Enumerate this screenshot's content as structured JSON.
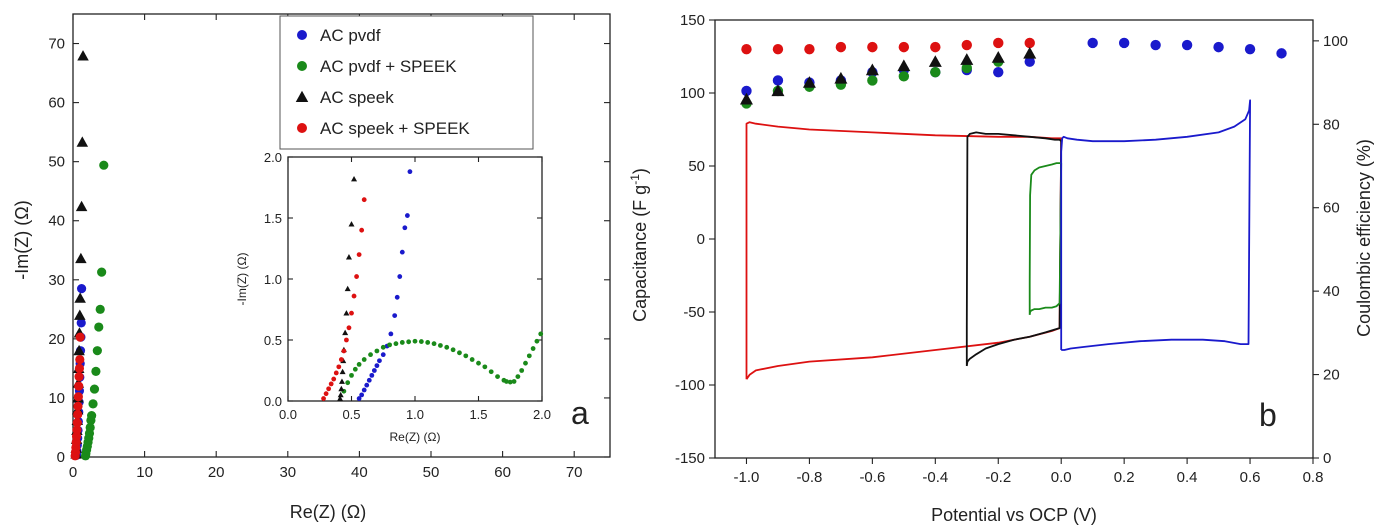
{
  "chart_data": [
    {
      "id": "panel-a",
      "type": "scatter",
      "panel_label": "a",
      "xlabel": "Re(Z) (Ω)",
      "ylabel": "-Im(Z) (Ω)",
      "xlim": [
        0,
        75
      ],
      "ylim": [
        0,
        75
      ],
      "xticks": [
        0,
        10,
        20,
        30,
        40,
        50,
        60,
        70
      ],
      "yticks": [
        0,
        10,
        20,
        30,
        40,
        50,
        60,
        70
      ],
      "legend_position": "top-right",
      "series": [
        {
          "name": "AC pvdf",
          "color": "#1a1acc",
          "marker": "circle",
          "x": [
            0.5,
            0.55,
            0.6,
            0.65,
            0.7,
            0.75,
            0.8,
            0.85,
            0.9,
            0.95,
            1.0,
            1.05,
            1.1,
            1.15,
            1.2
          ],
          "y": [
            0.3,
            1.0,
            2.0,
            3.2,
            4.5,
            6.0,
            7.6,
            9.3,
            11.2,
            13.5,
            15.8,
            18.0,
            20.3,
            22.7,
            28.5
          ]
        },
        {
          "name": "AC pvdf + SPEEK",
          "color": "#1a8a1a",
          "marker": "circle",
          "x": [
            1.75,
            1.8,
            1.9,
            2.0,
            2.1,
            2.2,
            2.3,
            2.4,
            2.5,
            2.6,
            2.8,
            3.0,
            3.2,
            3.4,
            3.6,
            3.8,
            4.0,
            4.3
          ],
          "y": [
            0.2,
            0.6,
            1.2,
            1.8,
            2.5,
            3.2,
            4.0,
            5.0,
            6.2,
            7.0,
            9.0,
            11.5,
            14.5,
            18.0,
            22.0,
            25.0,
            31.3,
            49.4
          ]
        },
        {
          "name": "AC speek",
          "color": "#111111",
          "marker": "triangle",
          "x": [
            0.43,
            0.45,
            0.5,
            0.55,
            0.6,
            0.65,
            0.7,
            0.75,
            0.8,
            0.85,
            0.9,
            0.95,
            1.0,
            1.1,
            1.2,
            1.3,
            1.4
          ],
          "y": [
            0.5,
            1.5,
            3.0,
            4.5,
            6.2,
            8.0,
            10.0,
            12.5,
            15.0,
            18.0,
            21.0,
            24.0,
            26.9,
            33.6,
            42.4,
            53.3,
            67.9
          ]
        },
        {
          "name": "AC speek + SPEEK",
          "color": "#dd1111",
          "marker": "circle",
          "x": [
            0.3,
            0.35,
            0.4,
            0.45,
            0.5,
            0.55,
            0.6,
            0.65,
            0.7,
            0.75,
            0.8,
            0.85,
            0.9,
            0.95,
            1.0
          ],
          "y": [
            0.2,
            0.8,
            1.6,
            2.5,
            3.5,
            4.6,
            5.8,
            7.2,
            8.6,
            10.2,
            12.0,
            13.6,
            15.0,
            16.5,
            20.3
          ]
        }
      ],
      "inset": {
        "xlabel": "Re(Z) (Ω)",
        "ylabel": "-Im(Z) (Ω)",
        "xlim": [
          0,
          2.0
        ],
        "ylim": [
          0,
          2.0
        ],
        "xticks": [
          0.0,
          0.5,
          1.0,
          1.5,
          2.0
        ],
        "yticks": [
          0.0,
          0.5,
          1.0,
          1.5,
          2.0
        ],
        "series": [
          {
            "name": "AC pvdf",
            "color": "#1a1acc",
            "marker": "circle",
            "x": [
              0.56,
              0.58,
              0.6,
              0.62,
              0.64,
              0.66,
              0.68,
              0.7,
              0.72,
              0.75,
              0.78,
              0.81,
              0.84,
              0.86,
              0.88,
              0.9,
              0.92,
              0.94,
              0.96
            ],
            "y": [
              0.02,
              0.05,
              0.09,
              0.13,
              0.17,
              0.21,
              0.25,
              0.29,
              0.33,
              0.38,
              0.45,
              0.55,
              0.7,
              0.85,
              1.02,
              1.22,
              1.42,
              1.52,
              1.88
            ]
          },
          {
            "name": "AC pvdf + SPEEK",
            "color": "#1a8a1a",
            "marker": "circle",
            "x": [
              0.44,
              0.47,
              0.5,
              0.53,
              0.56,
              0.6,
              0.65,
              0.7,
              0.75,
              0.8,
              0.85,
              0.9,
              0.95,
              1.0,
              1.05,
              1.1,
              1.15,
              1.2,
              1.25,
              1.3,
              1.35,
              1.4,
              1.45,
              1.5,
              1.55,
              1.6,
              1.65,
              1.7,
              1.72,
              1.75,
              1.78,
              1.81,
              1.84,
              1.87,
              1.9,
              1.93,
              1.96,
              1.99
            ],
            "y": [
              0.08,
              0.15,
              0.21,
              0.26,
              0.3,
              0.34,
              0.38,
              0.41,
              0.44,
              0.46,
              0.47,
              0.48,
              0.485,
              0.49,
              0.487,
              0.48,
              0.47,
              0.455,
              0.44,
              0.42,
              0.395,
              0.37,
              0.34,
              0.31,
              0.28,
              0.24,
              0.2,
              0.17,
              0.16,
              0.155,
              0.16,
              0.2,
              0.25,
              0.31,
              0.37,
              0.43,
              0.49,
              0.55
            ]
          },
          {
            "name": "AC speek",
            "color": "#111111",
            "marker": "triangle",
            "x": [
              0.41,
              0.415,
              0.42,
              0.425,
              0.43,
              0.435,
              0.44,
              0.45,
              0.46,
              0.47,
              0.48,
              0.5,
              0.52
            ],
            "y": [
              0.02,
              0.05,
              0.1,
              0.16,
              0.24,
              0.33,
              0.42,
              0.56,
              0.72,
              0.92,
              1.18,
              1.45,
              1.82
            ]
          },
          {
            "name": "AC speek + SPEEK",
            "color": "#dd1111",
            "marker": "circle",
            "x": [
              0.28,
              0.3,
              0.32,
              0.34,
              0.36,
              0.38,
              0.4,
              0.42,
              0.44,
              0.46,
              0.48,
              0.5,
              0.52,
              0.54,
              0.56,
              0.58,
              0.6
            ],
            "y": [
              0.02,
              0.06,
              0.1,
              0.14,
              0.18,
              0.23,
              0.28,
              0.34,
              0.41,
              0.5,
              0.6,
              0.72,
              0.86,
              1.02,
              1.2,
              1.4,
              1.65
            ]
          }
        ]
      }
    },
    {
      "id": "panel-b",
      "type": "line",
      "panel_label": "b",
      "xlabel": "Potential vs OCP (V)",
      "ylabel": "Capacitance (F g-1)",
      "ylabel_parts": {
        "main": "Capacitance (F g",
        "sup": "-1",
        "close": ")"
      },
      "y2label": "Coulombic efficiency (%)",
      "xlim": [
        -1.1,
        0.8
      ],
      "ylim": [
        -150,
        150
      ],
      "y2lim": [
        0,
        105
      ],
      "xticks": [
        -1.0,
        -0.8,
        -0.6,
        -0.4,
        -0.2,
        0.0,
        0.2,
        0.4,
        0.6,
        0.8
      ],
      "xtick_labels": [
        "-1.0",
        "-0.8",
        "-0.6",
        "-0.4",
        "-0.2",
        "0.0",
        "0.2",
        "0.4",
        "0.6",
        "0.8"
      ],
      "yticks": [
        -150,
        -100,
        -50,
        0,
        50,
        100,
        150
      ],
      "y2ticks": [
        0,
        20,
        40,
        60,
        80,
        100
      ],
      "cv_curves": [
        {
          "color": "#dd1111",
          "x": [
            -1.0,
            -0.99,
            -0.97,
            -0.9,
            -0.8,
            -0.6,
            -0.4,
            -0.2,
            -0.1,
            -0.03,
            -0.005,
            0.0,
            -0.005,
            -0.03,
            -0.1,
            -0.2,
            -0.4,
            -0.6,
            -0.8,
            -0.9,
            -0.97,
            -0.99,
            -1.0,
            -1.0
          ],
          "y": [
            -96,
            -93,
            -90,
            -87,
            -84,
            -81,
            -76,
            -71,
            -67,
            -63,
            -61,
            69,
            69,
            69,
            70,
            70,
            71,
            73,
            75,
            77,
            79,
            80,
            79,
            -96
          ]
        },
        {
          "color": "#111111",
          "x": [
            -0.3,
            -0.298,
            -0.29,
            -0.27,
            -0.24,
            -0.2,
            -0.15,
            -0.1,
            -0.05,
            -0.02,
            -0.005,
            0.0,
            -0.005,
            -0.02,
            -0.05,
            -0.1,
            -0.15,
            -0.2,
            -0.24,
            -0.27,
            -0.29,
            -0.298,
            -0.3,
            -0.3
          ],
          "y": [
            -87,
            -84,
            -82,
            -79,
            -75,
            -72,
            -69,
            -67,
            -64,
            -62,
            -61,
            67,
            68,
            68,
            69,
            70,
            71,
            72,
            72,
            73,
            72,
            70,
            -60,
            -87
          ]
        },
        {
          "color": "#1a8a1a",
          "x": [
            -0.1,
            -0.099,
            -0.095,
            -0.085,
            -0.07,
            -0.05,
            -0.03,
            -0.015,
            -0.005,
            0.0,
            -0.005,
            -0.015,
            -0.03,
            -0.05,
            -0.07,
            -0.085,
            -0.095,
            -0.099,
            -0.1,
            -0.1
          ],
          "y": [
            -52,
            -50,
            -49,
            -48,
            -48,
            -47,
            -47,
            -46,
            -44,
            52,
            52,
            52,
            51,
            50,
            49,
            47,
            44,
            30,
            -30,
            -52
          ]
        },
        {
          "color": "#1a1acc",
          "x": [
            0.0,
            0.003,
            0.01,
            0.03,
            0.07,
            0.15,
            0.25,
            0.35,
            0.45,
            0.52,
            0.57,
            0.595,
            0.6,
            0.597,
            0.585,
            0.55,
            0.5,
            0.4,
            0.3,
            0.2,
            0.1,
            0.05,
            0.02,
            0.008,
            0.003,
            0.0,
            0.0
          ],
          "y": [
            -76,
            -76,
            -76,
            -75,
            -74,
            -72,
            -70,
            -69,
            -69,
            -70,
            -72,
            -72,
            95,
            88,
            82,
            77,
            73,
            70,
            68,
            67,
            67,
            68,
            69,
            70,
            69,
            60,
            -76
          ]
        }
      ],
      "efficiency_series": [
        {
          "color": "#dd1111",
          "x": [
            -1.0,
            -0.9,
            -0.8,
            -0.7,
            -0.6,
            -0.5,
            -0.4,
            -0.3,
            -0.2,
            -0.1
          ],
          "y": [
            98,
            98,
            98,
            98.5,
            98.5,
            98.5,
            98.5,
            99,
            99.5,
            99.5
          ]
        },
        {
          "color": "#1a1acc",
          "x": [
            -1.0,
            -0.9,
            -0.8,
            -0.7,
            -0.6,
            -0.5,
            -0.4,
            -0.3,
            -0.2,
            -0.1,
            0.1,
            0.2,
            0.3,
            0.4,
            0.5,
            0.6,
            0.7
          ],
          "y": [
            88,
            90.5,
            90,
            90.5,
            92.5,
            93,
            92.5,
            93,
            92.5,
            95,
            99.5,
            99.5,
            99,
            99,
            98.5,
            98,
            97
          ]
        },
        {
          "color": "#1a8a1a",
          "x": [
            -1.0,
            -0.9,
            -0.8,
            -0.7,
            -0.6,
            -0.5,
            -0.4,
            -0.3,
            -0.2
          ],
          "y": [
            85,
            88,
            89,
            89.5,
            90.5,
            91.5,
            92.5,
            93.5,
            95
          ]
        },
        {
          "color": "#111111",
          "marker": "triangle",
          "x": [
            -1.0,
            -0.9,
            -0.8,
            -0.7,
            -0.6,
            -0.5,
            -0.4,
            -0.3,
            -0.2,
            -0.1
          ],
          "y": [
            86,
            88,
            90,
            91,
            93,
            94,
            95,
            95.5,
            96,
            97
          ]
        }
      ]
    }
  ]
}
